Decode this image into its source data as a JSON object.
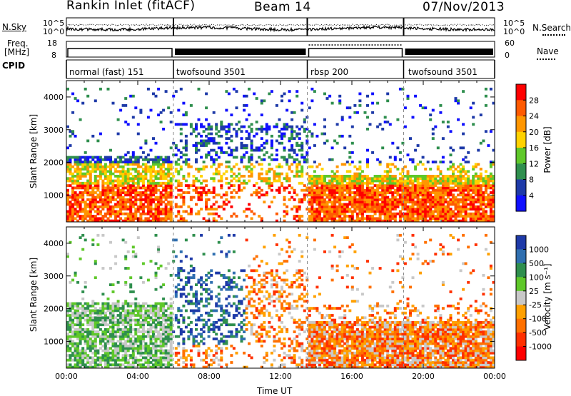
{
  "header": {
    "site": "Rankin Inlet (fitACF)",
    "beam": "Beam 14",
    "date": "07/Nov/2013"
  },
  "left_labels": {
    "nsky": "N.Sky",
    "freq": "Freq.",
    "freq_unit": "[MHz]",
    "cpid": "CPID"
  },
  "right_labels": {
    "nsearch": "N.Search",
    "nave": "Nave"
  },
  "noise_axis": {
    "left_ticks": [
      "10^5",
      "10^0"
    ],
    "right_ticks": [
      "10^5",
      "10^0"
    ]
  },
  "freq_axis": {
    "left_ticks": [
      "18",
      "8"
    ],
    "right_ticks": [
      "60",
      "0"
    ]
  },
  "cpid_segments": [
    {
      "label": "normal (fast) 151",
      "start_hour": 0,
      "end_hour": 6.0
    },
    {
      "label": "twofsound 3501",
      "start_hour": 6.0,
      "end_hour": 13.5
    },
    {
      "label": "rbsp 200",
      "start_hour": 13.5,
      "end_hour": 18.9
    },
    {
      "label": "twofsound 3501",
      "start_hour": 18.9,
      "end_hour": 24
    }
  ],
  "chart_data": [
    {
      "type": "heatmap",
      "panel": "power",
      "ylabel": "Slant Range [km]",
      "xlabel": "",
      "xlim": [
        0,
        24
      ],
      "ylim": [
        180,
        4500
      ],
      "y_ticks": [
        "1000",
        "2000",
        "3000",
        "4000"
      ],
      "colorbar": {
        "label": "Power [dB]",
        "ticks": [
          "28",
          "24",
          "20",
          "16",
          "12",
          "8",
          "4"
        ],
        "colors": [
          "#ff0000",
          "#ff5a00",
          "#ff9600",
          "#ffd200",
          "#5fc82a",
          "#2f8f4e",
          "#1e3aa8",
          "#1010ff"
        ]
      }
    },
    {
      "type": "heatmap",
      "panel": "velocity",
      "ylabel": "Slant Range [km]",
      "xlabel": "Time UT",
      "xlim": [
        0,
        24
      ],
      "ylim": [
        180,
        4500
      ],
      "x_ticks": [
        "00:00",
        "04:00",
        "08:00",
        "12:00",
        "16:00",
        "20:00",
        "00:00"
      ],
      "y_ticks": [
        "1000",
        "2000",
        "3000",
        "4000"
      ],
      "colorbar": {
        "label": "Velocity [m s⁻¹]",
        "ticks": [
          "1000",
          "500",
          "100",
          "25",
          "-25",
          "-100",
          "-500",
          "-1000"
        ],
        "colors": [
          "#1e3aa8",
          "#2f6fb0",
          "#2f8f4e",
          "#5fc82a",
          "#c8c8c8",
          "#ffa000",
          "#ff7000",
          "#ff3000",
          "#ff0000"
        ]
      }
    }
  ]
}
